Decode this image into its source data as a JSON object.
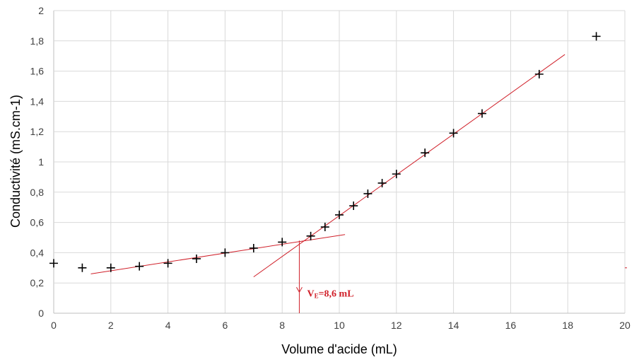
{
  "chart_data": {
    "type": "scatter",
    "xlabel": "Volume d'acide (mL)",
    "ylabel": "Conductivité (mS.cm-1)",
    "xlim": [
      0,
      20
    ],
    "ylim": [
      0,
      2
    ],
    "xticks": [
      "0",
      "2",
      "4",
      "6",
      "8",
      "10",
      "12",
      "14",
      "16",
      "18",
      "20"
    ],
    "yticks": [
      "0",
      "0,2",
      "0,4",
      "0,6",
      "0,8",
      "1",
      "1,2",
      "1,4",
      "1,6",
      "1,8",
      "2"
    ],
    "grid": "vertical and horizontal",
    "marker": "+",
    "series": [
      {
        "x": [
          0,
          1,
          2,
          3,
          4,
          5,
          6,
          7,
          8,
          9,
          9.5,
          10,
          10.5,
          11,
          11.5,
          12,
          13,
          14,
          15,
          17,
          19
        ],
        "y": [
          0.33,
          0.3,
          0.3,
          0.31,
          0.33,
          0.36,
          0.4,
          0.43,
          0.47,
          0.51,
          0.57,
          0.65,
          0.71,
          0.79,
          0.86,
          0.92,
          1.06,
          1.19,
          1.32,
          1.58,
          1.83
        ]
      }
    ],
    "fit_lines": [
      {
        "x": [
          1.3,
          10.2
        ],
        "y": [
          0.26,
          0.52
        ]
      },
      {
        "x": [
          7.0,
          17.9
        ],
        "y": [
          0.24,
          1.71
        ]
      }
    ],
    "equivalence": {
      "x": 8.6,
      "y": 0.48,
      "label_main": "V",
      "label_sub": "E",
      "label_rest": "=8,6 mL"
    },
    "colors": {
      "points": "#000000",
      "fit": "#d0202a",
      "grid": "#d9d9d9",
      "axis": "#bfbfbf"
    }
  }
}
